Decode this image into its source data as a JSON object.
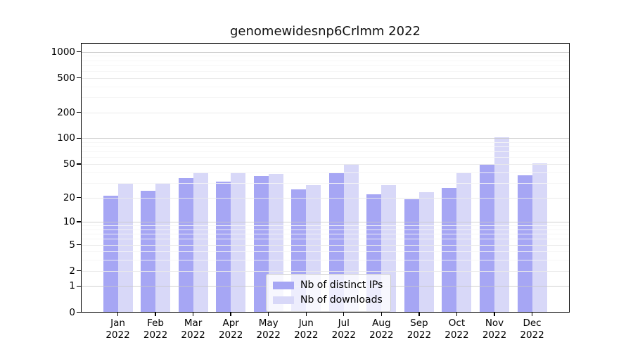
{
  "chart_data": {
    "type": "bar",
    "title": "genomewidesnp6Crlmm 2022",
    "categories": [
      "Jan 2022",
      "Feb 2022",
      "Mar 2022",
      "Apr 2022",
      "May 2022",
      "Jun 2022",
      "Jul 2022",
      "Aug 2022",
      "Sep 2022",
      "Oct 2022",
      "Nov 2022",
      "Dec 2022"
    ],
    "series": [
      {
        "name": "Nb of distinct IPs",
        "color": "#a6a6f4",
        "values": [
          21,
          24,
          34,
          31,
          36,
          25,
          39,
          22,
          19,
          26,
          49,
          37
        ]
      },
      {
        "name": "Nb of downloads",
        "color": "#d8d8f8",
        "values": [
          29,
          30,
          40,
          40,
          38,
          28,
          50,
          28,
          23,
          40,
          102,
          51
        ]
      }
    ],
    "xlabel": "",
    "ylabel": "",
    "yscale": "log1p",
    "ylim": [
      0,
      1000
    ],
    "yticks": [
      0,
      1,
      2,
      5,
      10,
      20,
      50,
      100,
      200,
      500,
      1000
    ],
    "minor_gridline_values": [
      3,
      4,
      6,
      7,
      8,
      9,
      30,
      40,
      60,
      70,
      80,
      90,
      300,
      400,
      600,
      700,
      800,
      900
    ],
    "grid": "on",
    "legend_position": "lower center",
    "colors": {
      "decade_gridline": "#c8c8c8",
      "tick_gridline": "#eaeaea",
      "minor_gridline": "#f5f5f5",
      "axis": "#000000",
      "background": "#ffffff"
    }
  }
}
